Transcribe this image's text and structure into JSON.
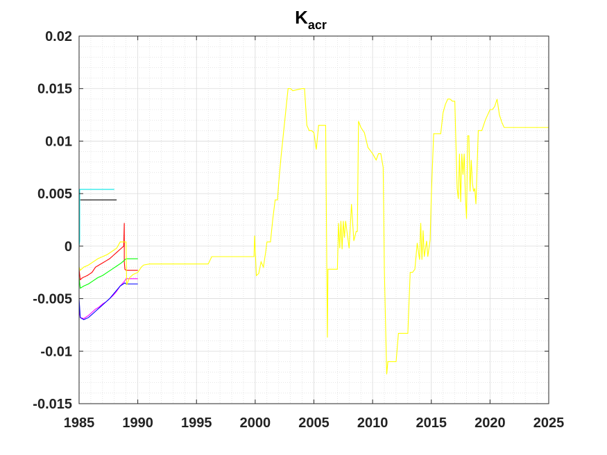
{
  "chart_data": {
    "type": "line",
    "title": "K",
    "title_subscript": "acr",
    "xlabel": "",
    "ylabel": "",
    "xlim": [
      1985,
      2025
    ],
    "ylim": [
      -0.015,
      0.02
    ],
    "xticks": [
      1985,
      1990,
      1995,
      2000,
      2005,
      2010,
      2015,
      2020,
      2025
    ],
    "yticks": [
      -0.015,
      -0.01,
      -0.005,
      0,
      0.005,
      0.01,
      0.015,
      0.02
    ],
    "ytick_labels": [
      "-0.015",
      "-0.01",
      "-0.005",
      "0",
      "0.005",
      "0.01",
      "0.015",
      "0.02"
    ],
    "grid": true,
    "minor_grid": true,
    "series": [
      {
        "color": "#00e5e5",
        "x": [
          1985,
          1985.05,
          1985.05,
          1988.0
        ],
        "y": [
          0.0,
          0.0005,
          0.0054,
          0.0054
        ]
      },
      {
        "color": "#000000",
        "x": [
          1985.1,
          1988.2
        ],
        "y": [
          0.0044,
          0.0044
        ]
      },
      {
        "color": "#ff0000",
        "x": [
          1985,
          1985.1,
          1985.3,
          1985.7,
          1986.1,
          1986.4,
          1986.7,
          1987.0,
          1987.3,
          1987.6,
          1987.9,
          1988.2,
          1988.5,
          1988.8,
          1988.85,
          1988.85,
          1988.9,
          1989.0,
          1990.0
        ],
        "y": [
          -0.0022,
          -0.0032,
          -0.003,
          -0.0028,
          -0.0025,
          -0.002,
          -0.0018,
          -0.0016,
          -0.0014,
          -0.0012,
          -0.0009,
          -0.0006,
          -0.0003,
          0.0,
          0.0022,
          -0.0015,
          -0.0022,
          -0.0023,
          -0.0023
        ]
      },
      {
        "color": "#00ff00",
        "x": [
          1985,
          1985.1,
          1985.4,
          1985.8,
          1986.2,
          1986.6,
          1987.0,
          1987.4,
          1987.8,
          1988.2,
          1988.6,
          1988.9,
          1989.0,
          1990.0
        ],
        "y": [
          -0.003,
          -0.004,
          -0.0038,
          -0.0036,
          -0.0033,
          -0.003,
          -0.0028,
          -0.0025,
          -0.0022,
          -0.0019,
          -0.0016,
          -0.0013,
          -0.0012,
          -0.0012
        ]
      },
      {
        "color": "#ff00ff",
        "x": [
          1985,
          1985.1,
          1985.4,
          1985.8,
          1986.1,
          1986.4,
          1986.7,
          1987.0,
          1987.3,
          1987.6,
          1987.9,
          1988.2,
          1988.5,
          1988.9,
          1989.0,
          1990.0
        ],
        "y": [
          -0.006,
          -0.0068,
          -0.0069,
          -0.0066,
          -0.0063,
          -0.006,
          -0.0058,
          -0.0055,
          -0.0053,
          -0.005,
          -0.0047,
          -0.0043,
          -0.0038,
          -0.0033,
          -0.0031,
          -0.0031
        ]
      },
      {
        "color": "#0000ff",
        "x": [
          1985,
          1985.1,
          1985.4,
          1985.8,
          1986.1,
          1986.4,
          1986.7,
          1987.0,
          1987.3,
          1987.6,
          1987.9,
          1988.2,
          1988.5,
          1988.9,
          1989.0,
          1990.0
        ],
        "y": [
          -0.005,
          -0.0068,
          -0.007,
          -0.0068,
          -0.0065,
          -0.0062,
          -0.0059,
          -0.0056,
          -0.0053,
          -0.005,
          -0.0046,
          -0.0042,
          -0.0038,
          -0.0035,
          -0.0036,
          -0.0036
        ]
      },
      {
        "color": "#ffff00",
        "x": [
          1985,
          1985.1,
          1985.4,
          1985.8,
          1986.2,
          1986.6,
          1987.0,
          1987.4,
          1987.8,
          1988.2,
          1988.4,
          1988.5,
          1989.0,
          1989.05,
          1989.3,
          1989.6,
          1990.0,
          1990.3,
          1990.5,
          1991.0,
          1993.0,
          1996.0,
          1996.3,
          1998.0,
          1999.9,
          1999.95,
          2000.1,
          2000.3,
          2000.5,
          2000.7,
          2000.9,
          2001.0,
          2001.3,
          2001.5,
          2001.7,
          2001.9,
          2002.0,
          2002.2,
          2002.8,
          2003.0,
          2003.2,
          2004.0,
          2004.2,
          2004.4,
          2004.6,
          2004.8,
          2005.0,
          2005.2,
          2005.4,
          2005.6,
          2006.0,
          2006.15,
          2006.2,
          2006.3,
          2007.0,
          2007.1,
          2007.2,
          2007.3,
          2007.4,
          2007.5,
          2007.6,
          2007.7,
          2008.0,
          2008.2,
          2008.4,
          2008.6,
          2008.7,
          2008.8,
          2009.0,
          2009.3,
          2009.6,
          2010.0,
          2010.3,
          2010.5,
          2010.7,
          2010.9,
          2011.0,
          2011.2,
          2011.3,
          2011.6,
          2012.0,
          2012.2,
          2012.5,
          2013.0,
          2013.2,
          2013.4,
          2013.6,
          2013.8,
          2014.0,
          2014.1,
          2014.2,
          2014.3,
          2014.4,
          2014.6,
          2014.7,
          2014.9,
          2015.0,
          2015.2,
          2015.5,
          2015.8,
          2016.0,
          2016.2,
          2016.4,
          2016.6,
          2016.8,
          2017.0,
          2017.2,
          2017.3,
          2017.4,
          2017.5,
          2017.6,
          2017.7,
          2017.8,
          2017.9,
          2018.0,
          2018.1,
          2018.2,
          2018.3,
          2018.4,
          2018.5,
          2018.6,
          2018.7,
          2018.8,
          2019.0,
          2019.3,
          2019.6,
          2019.8,
          2020.0,
          2020.2,
          2020.4,
          2020.6,
          2020.8,
          2021.0,
          2021.2,
          2021.5,
          2022.0,
          2023.0,
          2024.0,
          2025.0
        ],
        "y": [
          -0.002,
          -0.0023,
          -0.002,
          -0.0018,
          -0.0015,
          -0.0012,
          -0.001,
          -0.0008,
          -0.0005,
          -0.0002,
          0.0002,
          0.0004,
          0.0004,
          -0.0037,
          -0.003,
          -0.0027,
          -0.0025,
          -0.002,
          -0.0018,
          -0.0017,
          -0.0017,
          -0.0017,
          -0.001,
          -0.001,
          -0.001,
          0.001,
          -0.0028,
          -0.0026,
          -0.0015,
          -0.002,
          -0.0005,
          0.0004,
          0.0004,
          0.0026,
          0.0044,
          0.0044,
          0.006,
          0.0085,
          0.015,
          0.015,
          0.0148,
          0.015,
          0.015,
          0.0115,
          0.011,
          0.011,
          0.0108,
          0.0092,
          0.0115,
          0.0115,
          0.0115,
          -0.0087,
          -0.0022,
          -0.0022,
          -0.0022,
          0.0022,
          -0.0002,
          0.0024,
          -0.0003,
          0.0024,
          0.0008,
          0.0024,
          -0.0002,
          0.004,
          0.0005,
          0.0014,
          0.0014,
          0.0119,
          0.0113,
          0.0108,
          0.0094,
          0.0088,
          0.0082,
          0.0088,
          0.0088,
          0.0075,
          -0.0022,
          -0.0122,
          -0.011,
          -0.011,
          -0.011,
          -0.0083,
          -0.0083,
          -0.0083,
          -0.0025,
          -0.0025,
          -0.0022,
          0.0003,
          -0.0013,
          0.0022,
          -0.0013,
          0.0015,
          -0.001,
          0.0005,
          -0.001,
          0.0006,
          0.0048,
          0.0107,
          0.0107,
          0.0107,
          0.0127,
          0.0135,
          0.014,
          0.014,
          0.0138,
          0.0138,
          0.0055,
          0.0045,
          0.0088,
          0.0042,
          0.0088,
          0.0068,
          0.0088,
          0.0048,
          0.0026,
          0.0105,
          0.0105,
          0.0052,
          0.0082,
          0.006,
          0.0052,
          0.0055,
          0.004,
          0.011,
          0.011,
          0.012,
          0.0125,
          0.013,
          0.013,
          0.0133,
          0.014,
          0.0125,
          0.0118,
          0.0113,
          0.0113,
          0.0113,
          0.0113,
          0.0113,
          0.0113
        ]
      }
    ]
  }
}
